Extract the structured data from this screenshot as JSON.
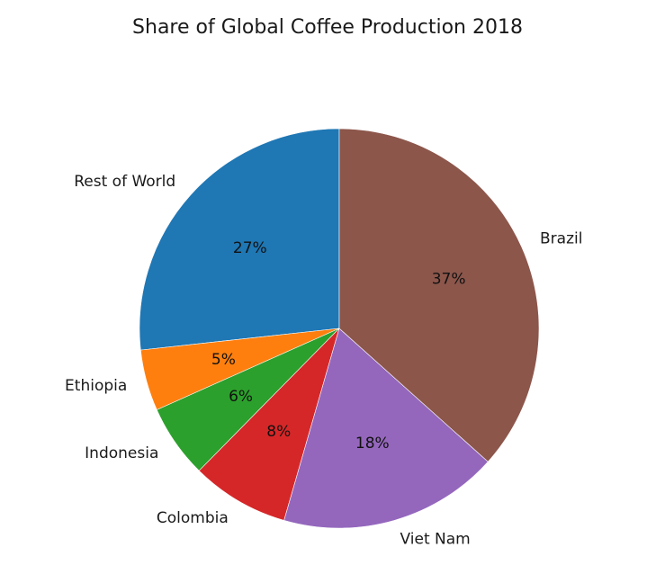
{
  "chart_data": {
    "type": "pie",
    "title": "Share of Global Coffee Production 2018",
    "start_angle_deg": 90,
    "direction": "counterclockwise",
    "slices": [
      {
        "label": "Rest of World",
        "value": 27,
        "pct_label": "27%",
        "color": "#1f77b4"
      },
      {
        "label": "Ethiopia",
        "value": 5,
        "pct_label": "5%",
        "color": "#ff7f0e"
      },
      {
        "label": "Indonesia",
        "value": 6,
        "pct_label": "6%",
        "color": "#2ca02c"
      },
      {
        "label": "Colombia",
        "value": 8,
        "pct_label": "8%",
        "color": "#d62728"
      },
      {
        "label": "Viet Nam",
        "value": 18,
        "pct_label": "18%",
        "color": "#9467bd"
      },
      {
        "label": "Brazil",
        "value": 37,
        "pct_label": "37%",
        "color": "#8c564b"
      }
    ]
  }
}
